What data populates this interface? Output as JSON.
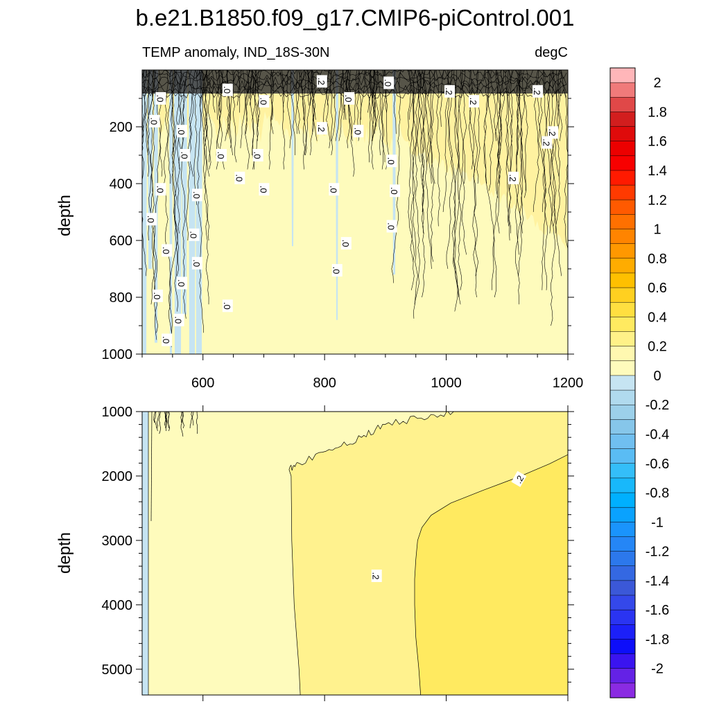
{
  "title": "b.e21.B1850.f09_g17.CMIP6-piControl.001",
  "chart_data": [
    {
      "type": "heatmap",
      "panel": "upper",
      "subtitle_left": "TEMP anomaly, IND_18S-30N",
      "subtitle_right": "degC",
      "ylabel": "depth",
      "xlim": [
        500,
        1200
      ],
      "ylim": [
        1000,
        0
      ],
      "x_ticks": [
        600,
        800,
        1000,
        1200
      ],
      "y_ticks": [
        200,
        400,
        600,
        800,
        1000
      ],
      "contour_labels": [
        ".0",
        ".2"
      ],
      "label_points": [
        {
          "x": 530,
          "y": 100,
          "text": ".0"
        },
        {
          "x": 640,
          "y": 70,
          "text": ".0"
        },
        {
          "x": 700,
          "y": 110,
          "text": ".0"
        },
        {
          "x": 795,
          "y": 40,
          "text": ".2"
        },
        {
          "x": 840,
          "y": 100,
          "text": ".0"
        },
        {
          "x": 905,
          "y": 45,
          "text": ".0"
        },
        {
          "x": 1005,
          "y": 75,
          "text": ".2"
        },
        {
          "x": 1045,
          "y": 110,
          "text": ".2"
        },
        {
          "x": 1150,
          "y": 75,
          "text": ".2"
        },
        {
          "x": 520,
          "y": 180,
          "text": ".0"
        },
        {
          "x": 565,
          "y": 215,
          "text": ".0"
        },
        {
          "x": 795,
          "y": 205,
          "text": ".2"
        },
        {
          "x": 855,
          "y": 215,
          "text": ".0"
        },
        {
          "x": 1175,
          "y": 220,
          "text": ".2"
        },
        {
          "x": 1165,
          "y": 255,
          "text": ".2"
        },
        {
          "x": 570,
          "y": 300,
          "text": ".0"
        },
        {
          "x": 630,
          "y": 300,
          "text": ".0"
        },
        {
          "x": 690,
          "y": 300,
          "text": ".0"
        },
        {
          "x": 910,
          "y": 320,
          "text": ".0"
        },
        {
          "x": 660,
          "y": 380,
          "text": ".0"
        },
        {
          "x": 530,
          "y": 420,
          "text": ".0"
        },
        {
          "x": 700,
          "y": 420,
          "text": ".0"
        },
        {
          "x": 815,
          "y": 420,
          "text": ".0"
        },
        {
          "x": 915,
          "y": 425,
          "text": ".0"
        },
        {
          "x": 1110,
          "y": 380,
          "text": ".2"
        },
        {
          "x": 590,
          "y": 440,
          "text": ".0"
        },
        {
          "x": 515,
          "y": 525,
          "text": ".0"
        },
        {
          "x": 910,
          "y": 550,
          "text": ".0"
        },
        {
          "x": 585,
          "y": 580,
          "text": ".0"
        },
        {
          "x": 835,
          "y": 610,
          "text": ".0"
        },
        {
          "x": 540,
          "y": 635,
          "text": ".0"
        },
        {
          "x": 590,
          "y": 680,
          "text": ".0"
        },
        {
          "x": 820,
          "y": 705,
          "text": ".0"
        },
        {
          "x": 565,
          "y": 750,
          "text": ".0"
        },
        {
          "x": 525,
          "y": 795,
          "text": ".0"
        },
        {
          "x": 640,
          "y": 830,
          "text": ".0"
        },
        {
          "x": 560,
          "y": 880,
          "text": ".0"
        },
        {
          "x": 540,
          "y": 950,
          "text": ".0"
        }
      ]
    },
    {
      "type": "heatmap",
      "panel": "lower",
      "ylabel": "depth",
      "xlim": [
        500,
        1200
      ],
      "ylim": [
        5400,
        1000
      ],
      "y_ticks": [
        1000,
        2000,
        3000,
        4000,
        5000
      ],
      "contour_levels": [
        0,
        0.2
      ],
      "label_points": [
        {
          "x": 1120,
          "y": 2050,
          "text": ".2"
        },
        {
          "x": 885,
          "y": 3550,
          "text": ".2"
        }
      ]
    }
  ],
  "colorbar": {
    "labels": [
      "2",
      "1.8",
      "1.6",
      "1.4",
      "1.2",
      "1",
      "0.8",
      "0.6",
      "0.4",
      "0.2",
      "0",
      "-0.2",
      "-0.4",
      "-0.6",
      "-0.8",
      "-1",
      "-1.2",
      "-1.4",
      "-1.6",
      "-1.8",
      "-2"
    ],
    "colors": [
      "#ffb6b9",
      "#f07a7a",
      "#e04848",
      "#d21e1e",
      "#df0b0b",
      "#ec0000",
      "#f80000",
      "#ff1a00",
      "#ff3a00",
      "#ff5a00",
      "#ff7000",
      "#ff8400",
      "#ff9800",
      "#ffac00",
      "#ffc000",
      "#ffd020",
      "#ffdf40",
      "#ffea60",
      "#fff188",
      "#fff8b0",
      "#fefbbc",
      "#c6e4f2",
      "#b0daee",
      "#9cd0ea",
      "#86c6ea",
      "#70bff0",
      "#5abcf4",
      "#34bef9",
      "#18b8fb",
      "#00b0ff",
      "#0aa2fe",
      "#1a94fc",
      "#2586f6",
      "#2c78ec",
      "#3468e2",
      "#3b58d8",
      "#3448ea",
      "#2a34f2",
      "#1c20f8",
      "#0d0efa",
      "#3a14f0",
      "#6422e6",
      "#8a2be2"
    ]
  }
}
